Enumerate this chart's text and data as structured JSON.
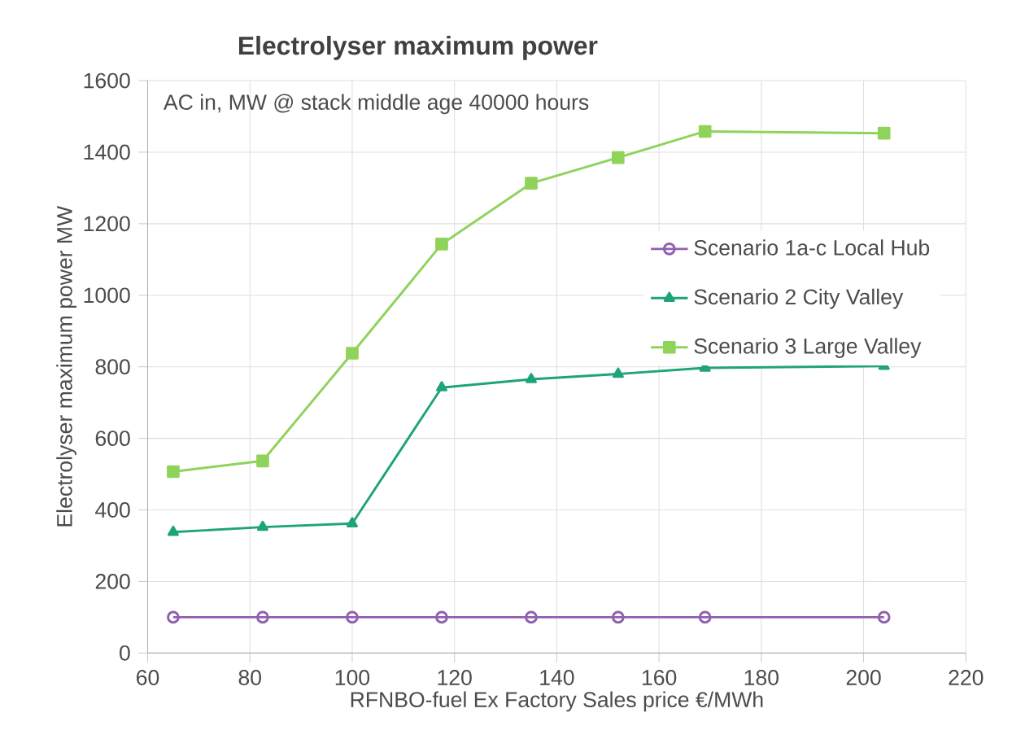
{
  "chart_data": {
    "type": "line",
    "title": "Electrolyser maximum power",
    "subtitle": "AC in, MW @ stack middle age 40000 hours",
    "xlabel": "RFNBO-fuel Ex Factory Sales price €/MWh",
    "ylabel": "Electrolyser  maximum power MW",
    "x": [
      65,
      82.5,
      100,
      117.5,
      135,
      152,
      169,
      204
    ],
    "series": [
      {
        "name": "Scenario 1a-c Local Hub",
        "color": "#9060b0",
        "marker": "circle",
        "values": [
          100,
          100,
          100,
          100,
          100,
          100,
          100,
          100
        ]
      },
      {
        "name": "Scenario 2 City Valley",
        "color": "#1fa37c",
        "marker": "triangle",
        "values": [
          338,
          352,
          362,
          742,
          765,
          780,
          797,
          802
        ]
      },
      {
        "name": "Scenario 3 Large Valley",
        "color": "#8fd35a",
        "marker": "square",
        "values": [
          507,
          537,
          838,
          1143,
          1313,
          1385,
          1458,
          1453
        ]
      }
    ],
    "xlim": [
      60,
      220
    ],
    "xticks": [
      60,
      80,
      100,
      120,
      140,
      160,
      180,
      200,
      220
    ],
    "ylim": [
      0,
      1600
    ],
    "yticks": [
      0,
      200,
      400,
      600,
      800,
      1000,
      1200,
      1400,
      1600
    ],
    "grid": true,
    "legend": "right",
    "line_style": "solid"
  }
}
